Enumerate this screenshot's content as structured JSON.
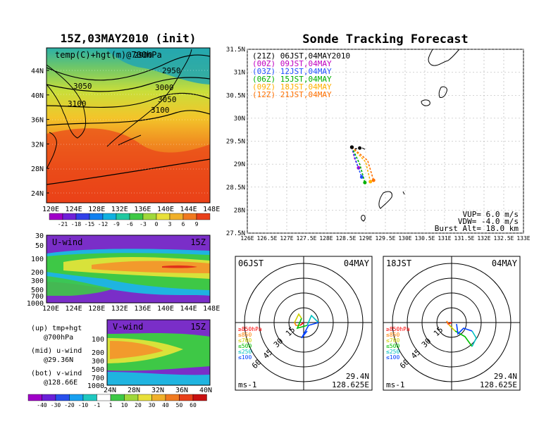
{
  "left_map": {
    "title": "15Z,03MAY2010 (init)",
    "label": "temp(C)+hgt(m)@700hPa",
    "contour_labels": [
      "2900",
      "2950",
      "3000",
      "3050",
      "3100",
      "3050",
      "3100"
    ],
    "lat_ticks": [
      "44N",
      "40N",
      "36N",
      "32N",
      "28N",
      "24N"
    ],
    "lon_ticks": [
      "120E",
      "124E",
      "128E",
      "132E",
      "136E",
      "140E",
      "144E",
      "148E"
    ],
    "colorbar": [
      "-21",
      "-18",
      "-15",
      "-12",
      "-9",
      "-6",
      "-3",
      "0",
      "3",
      "6",
      "9"
    ]
  },
  "u_panel": {
    "label": "U-wind",
    "time": "15Z",
    "p_ticks": [
      "30",
      "50",
      "100",
      "200",
      "300",
      "500",
      "700",
      "1000"
    ],
    "lon_ticks": [
      "120E",
      "124E",
      "128E",
      "132E",
      "136E",
      "140E",
      "144E",
      "148E"
    ]
  },
  "v_panel": {
    "label": "V-wind",
    "time": "15Z",
    "p_ticks": [
      "100",
      "200",
      "300",
      "500",
      "700",
      "1000"
    ],
    "lat_ticks": [
      "24N",
      "28N",
      "32N",
      "36N",
      "40N"
    ]
  },
  "wind_legend": {
    "lines": [
      "(up) tmp+hgt",
      "@700hPa",
      "(mid) u-wind",
      "@29.36N",
      "(bot) v-wind",
      "@128.66E"
    ],
    "colorbar": [
      "-40",
      "-30",
      "-20",
      "-10",
      "-1",
      "1",
      "10",
      "20",
      "30",
      "40",
      "50",
      "60"
    ]
  },
  "track": {
    "title": "Sonde Tracking Forecast",
    "lat_ticks": [
      "31.5N",
      "31N",
      "30.5N",
      "30N",
      "29.5N",
      "29N",
      "28.5N",
      "28N",
      "27.5N"
    ],
    "lon_ticks": [
      "126E",
      "126.5E",
      "127E",
      "127.5E",
      "128E",
      "128.5E",
      "129E",
      "129.5E",
      "130E",
      "130.5E",
      "131E",
      "131.5E",
      "132E",
      "132.5E",
      "133E"
    ],
    "legend": [
      {
        "text": "(21Z) 06JST,04MAY2010",
        "color": "#000000"
      },
      {
        "text": "(00Z) 09JST,04MAY",
        "color": "#c000c0"
      },
      {
        "text": "(03Z) 12JST,04MAY",
        "color": "#2050ff"
      },
      {
        "text": "(06Z) 15JST,04MAY",
        "color": "#00b000"
      },
      {
        "text": "(09Z) 18JST,04MAY",
        "color": "#ffb000"
      },
      {
        "text": "(12Z) 21JST,04MAY",
        "color": "#ff7000"
      }
    ],
    "params": [
      "VUP= 6.0 m/s",
      "VDW= -4.0 m/s",
      "Burst Alt= 18.0 km"
    ]
  },
  "hodo1": {
    "time": "06JST",
    "date": "04MAY",
    "loc1": "29.4N",
    "loc2": "128.625E",
    "unit": "ms-1",
    "rings": [
      "15",
      "30",
      "45",
      "60"
    ]
  },
  "hodo2": {
    "time": "18JST",
    "date": "04MAY",
    "loc1": "29.4N",
    "loc2": "128.625E",
    "unit": "ms-1",
    "rings": [
      "15",
      "30",
      "45",
      "60"
    ]
  },
  "hodo_levels": [
    {
      "text": "≥850hPa",
      "color": "#ff0000"
    },
    {
      "text": "≤850",
      "color": "#ff8000"
    },
    {
      "text": "≤700",
      "color": "#d0d000"
    },
    {
      "text": "≤500",
      "color": "#00c000"
    },
    {
      "text": "≤250",
      "color": "#00c0c0"
    },
    {
      "text": "≤100",
      "color": "#0040ff"
    }
  ],
  "chart_data": [
    {
      "type": "line",
      "title": "Sonde Tracking Forecast",
      "xlim": [
        126,
        133
      ],
      "ylim": [
        27.5,
        31.5
      ],
      "series": [
        {
          "name": "(21Z) 06JST,04MAY2010",
          "x": [
            128.65,
            128.72,
            128.85
          ],
          "y": [
            29.37,
            29.33,
            29.35
          ]
        },
        {
          "name": "(00Z) 09JST,04MAY",
          "x": [
            128.65,
            128.72,
            128.82
          ],
          "y": [
            29.37,
            29.12,
            28.92
          ]
        },
        {
          "name": "(03Z) 12JST,04MAY",
          "x": [
            128.65,
            128.78,
            128.9
          ],
          "y": [
            29.37,
            29.0,
            28.72
          ]
        },
        {
          "name": "(06Z) 15JST,04MAY",
          "x": [
            128.65,
            128.85,
            128.98
          ],
          "y": [
            29.37,
            29.0,
            28.6
          ]
        },
        {
          "name": "(09Z) 18JST,04MAY",
          "x": [
            128.65,
            129.0,
            129.12
          ],
          "y": [
            29.37,
            29.05,
            28.62
          ]
        },
        {
          "name": "(12Z) 21JST,04MAY",
          "x": [
            128.65,
            129.05,
            129.2
          ],
          "y": [
            29.37,
            29.08,
            28.65
          ]
        }
      ]
    }
  ]
}
